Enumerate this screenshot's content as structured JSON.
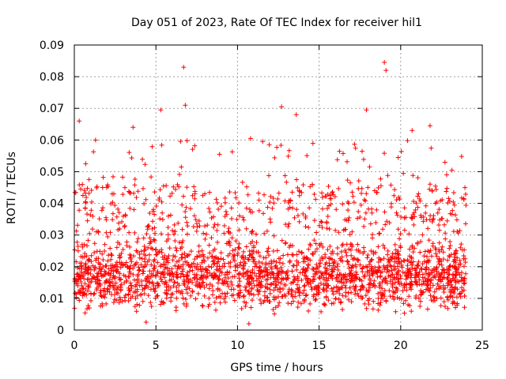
{
  "chart_data": {
    "type": "scatter",
    "title": "Day 051 of 2023, Rate Of TEC Index for receiver hil1",
    "xlabel": "GPS time / hours",
    "ylabel": "ROTI / TECUs",
    "xlim": [
      0,
      25
    ],
    "ylim": [
      0,
      0.09
    ],
    "x_ticks": [
      "0",
      "5",
      "10",
      "15",
      "20",
      "25"
    ],
    "y_ticks": [
      "0",
      "0.01",
      "0.02",
      "0.03",
      "0.04",
      "0.05",
      "0.06",
      "0.07",
      "0.08",
      "0.09"
    ],
    "grid": true,
    "series_color": "#ff0000",
    "marker": "+",
    "x_extent_hours": [
      0,
      24
    ],
    "typical_range": [
      0.005,
      0.03
    ],
    "notable_points": [
      {
        "x": 6.7,
        "y": 0.083
      },
      {
        "x": 19.0,
        "y": 0.0845
      },
      {
        "x": 19.1,
        "y": 0.082
      },
      {
        "x": 6.8,
        "y": 0.071
      },
      {
        "x": 12.7,
        "y": 0.0705
      },
      {
        "x": 13.6,
        "y": 0.068
      },
      {
        "x": 17.9,
        "y": 0.0695
      },
      {
        "x": 0.3,
        "y": 0.066
      },
      {
        "x": 3.6,
        "y": 0.064
      },
      {
        "x": 5.3,
        "y": 0.0695
      },
      {
        "x": 21.8,
        "y": 0.0645
      },
      {
        "x": 10.8,
        "y": 0.0605
      },
      {
        "x": 20.7,
        "y": 0.063
      },
      {
        "x": 8.9,
        "y": 0.0555
      },
      {
        "x": 10.7,
        "y": 0.002
      },
      {
        "x": 4.4,
        "y": 0.0025
      },
      {
        "x": 1.3,
        "y": 0.06
      }
    ]
  }
}
